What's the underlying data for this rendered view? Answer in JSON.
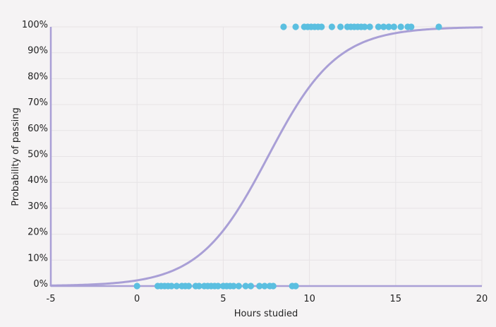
{
  "chart_data": {
    "type": "scatter",
    "xlabel": "Hours studied",
    "ylabel": "Probability of passing",
    "xlim": [
      -5,
      20
    ],
    "ylim": [
      0,
      1
    ],
    "x_ticks": [
      "-5",
      "0",
      "5",
      "10",
      "15",
      "20"
    ],
    "y_ticks": [
      "0%",
      "10%",
      "20%",
      "30%",
      "40%",
      "50%",
      "60%",
      "70%",
      "80%",
      "90%",
      "100%"
    ],
    "grid": true,
    "colors": {
      "points": "#5bbfe0",
      "curve": "#a99fd6",
      "axis": "#a99fd6",
      "grid": "#e6e3e5",
      "background": "#f5f3f4"
    },
    "series": [
      {
        "type": "scatter",
        "points": [
          [
            0.0,
            0
          ],
          [
            1.2,
            0
          ],
          [
            1.4,
            0
          ],
          [
            1.6,
            0
          ],
          [
            1.8,
            0
          ],
          [
            2.0,
            0
          ],
          [
            2.3,
            0
          ],
          [
            2.6,
            0
          ],
          [
            2.8,
            0
          ],
          [
            3.0,
            0
          ],
          [
            3.4,
            0
          ],
          [
            3.6,
            0
          ],
          [
            3.9,
            0
          ],
          [
            4.1,
            0
          ],
          [
            4.3,
            0
          ],
          [
            4.5,
            0
          ],
          [
            4.7,
            0
          ],
          [
            5.0,
            0
          ],
          [
            5.2,
            0
          ],
          [
            5.4,
            0
          ],
          [
            5.6,
            0
          ],
          [
            5.9,
            0
          ],
          [
            6.3,
            0
          ],
          [
            6.6,
            0
          ],
          [
            7.1,
            0
          ],
          [
            7.4,
            0
          ],
          [
            7.7,
            0
          ],
          [
            7.9,
            0
          ],
          [
            9.0,
            0
          ],
          [
            9.2,
            0
          ],
          [
            8.5,
            1
          ],
          [
            9.2,
            1
          ],
          [
            9.7,
            1
          ],
          [
            9.9,
            1
          ],
          [
            10.1,
            1
          ],
          [
            10.3,
            1
          ],
          [
            10.5,
            1
          ],
          [
            10.7,
            1
          ],
          [
            11.3,
            1
          ],
          [
            11.8,
            1
          ],
          [
            12.2,
            1
          ],
          [
            12.4,
            1
          ],
          [
            12.6,
            1
          ],
          [
            12.8,
            1
          ],
          [
            13.0,
            1
          ],
          [
            13.2,
            1
          ],
          [
            13.5,
            1
          ],
          [
            14.0,
            1
          ],
          [
            14.3,
            1
          ],
          [
            14.6,
            1
          ],
          [
            14.9,
            1
          ],
          [
            15.3,
            1
          ],
          [
            15.7,
            1
          ],
          [
            15.9,
            1
          ],
          [
            17.5,
            1
          ]
        ]
      },
      {
        "type": "line",
        "function": "logistic",
        "intercept": -3.8,
        "slope": 0.5
      }
    ]
  }
}
